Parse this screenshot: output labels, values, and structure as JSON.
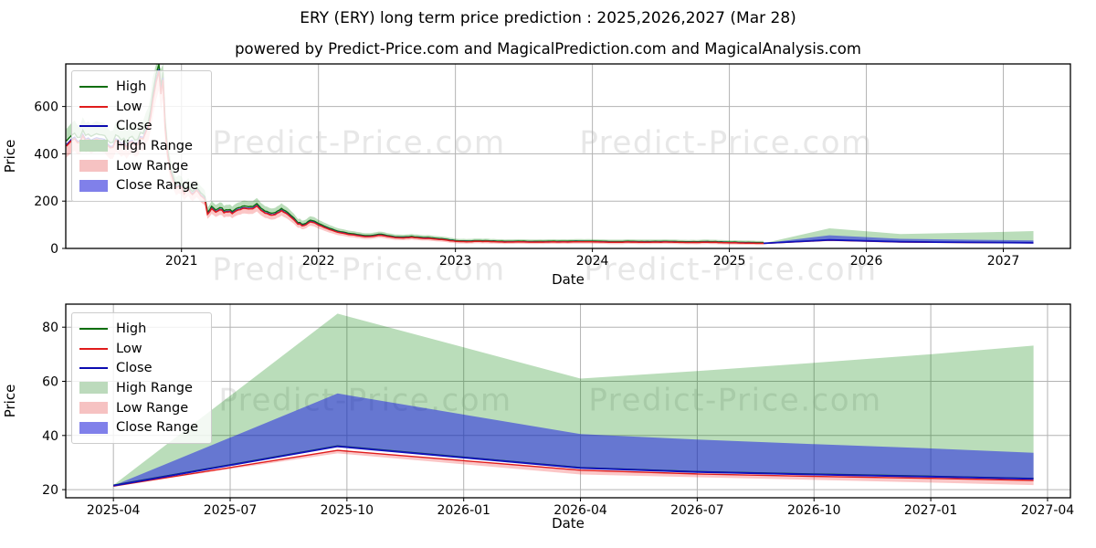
{
  "page": {
    "title": "ERY (ERY) long term price prediction : 2025,2026,2027 (Mar 28)",
    "subtitle": "powered by Predict-Price.com and MagicalPrediction.com and MagicalAnalysis.com"
  },
  "watermark": {
    "text": "Predict-Price.com",
    "color": "#e7e7e7"
  },
  "colors": {
    "high_line": "#0e6e0e",
    "low_line": "#df1d1d",
    "close_line": "#1111bb",
    "high_range_fill": "rgba(0,130,0,0.27)",
    "low_range_fill": "rgba(240,35,35,0.26)",
    "close_range_fill": "rgba(25,25,230,0.52)",
    "grid": "#b3b3b3",
    "spine": "#000000",
    "legend_high_swatch": "#0e6e0e",
    "legend_low_swatch": "#e01c1c",
    "legend_close_swatch": "#0b0bb0",
    "legend_high_range_swatch": "#bcdabc",
    "legend_low_range_swatch": "#f6c2c2",
    "legend_close_range_swatch": "#8080ea"
  },
  "legend": {
    "items": [
      {
        "label": "High",
        "swatch": "line",
        "color_key": "legend_high_swatch"
      },
      {
        "label": "Low",
        "swatch": "line",
        "color_key": "legend_low_swatch"
      },
      {
        "label": "Close",
        "swatch": "line",
        "color_key": "legend_close_swatch"
      },
      {
        "label": "High Range",
        "swatch": "fill",
        "color_key": "legend_high_range_swatch"
      },
      {
        "label": "Low Range",
        "swatch": "fill",
        "color_key": "legend_low_range_swatch"
      },
      {
        "label": "Close Range",
        "swatch": "fill",
        "color_key": "legend_close_range_swatch"
      }
    ]
  },
  "chart_data": [
    {
      "id": "history-and-forecast",
      "type": "line",
      "xlabel": "Date",
      "ylabel": "Price",
      "grid": true,
      "legend_position": "upper left",
      "xlim": [
        2020.155,
        2027.49
      ],
      "ylim": [
        0,
        780
      ],
      "x_ticks": [
        {
          "t": 2021,
          "label": "2021"
        },
        {
          "t": 2022,
          "label": "2022"
        },
        {
          "t": 2023,
          "label": "2023"
        },
        {
          "t": 2024,
          "label": "2024"
        },
        {
          "t": 2025,
          "label": "2025"
        },
        {
          "t": 2026,
          "label": "2026"
        },
        {
          "t": 2027,
          "label": "2027"
        }
      ],
      "y_ticks": [
        0,
        200,
        400,
        600
      ],
      "series_note": "Historical daily High/Low/Close 2020-03 to 2025-03 (values estimated from pixels; Low anchors below, High/Close tightly track Low), then forecast bands identical to detail chart",
      "historical_low_anchors": [
        [
          2020.16,
          430
        ],
        [
          2020.2,
          465
        ],
        [
          2020.24,
          440
        ],
        [
          2020.28,
          480
        ],
        [
          2020.32,
          455
        ],
        [
          2020.36,
          470
        ],
        [
          2020.4,
          442
        ],
        [
          2020.44,
          462
        ],
        [
          2020.48,
          432
        ],
        [
          2020.52,
          452
        ],
        [
          2020.56,
          428
        ],
        [
          2020.6,
          442
        ],
        [
          2020.64,
          456
        ],
        [
          2020.68,
          436
        ],
        [
          2020.72,
          462
        ],
        [
          2020.76,
          520
        ],
        [
          2020.79,
          610
        ],
        [
          2020.815,
          690
        ],
        [
          2020.835,
          738
        ],
        [
          2020.85,
          640
        ],
        [
          2020.865,
          692
        ],
        [
          2020.88,
          520
        ],
        [
          2020.9,
          400
        ],
        [
          2020.92,
          330
        ],
        [
          2020.94,
          280
        ],
        [
          2020.96,
          255
        ],
        [
          2020.98,
          262
        ],
        [
          2021.0,
          258
        ],
        [
          2021.02,
          236
        ],
        [
          2021.05,
          250
        ],
        [
          2021.08,
          228
        ],
        [
          2021.11,
          245
        ],
        [
          2021.14,
          226
        ],
        [
          2021.17,
          208
        ],
        [
          2021.19,
          146
        ],
        [
          2021.22,
          168
        ],
        [
          2021.25,
          156
        ],
        [
          2021.28,
          164
        ],
        [
          2021.31,
          152
        ],
        [
          2021.34,
          158
        ],
        [
          2021.37,
          150
        ],
        [
          2021.4,
          157
        ],
        [
          2021.43,
          165
        ],
        [
          2021.46,
          172
        ],
        [
          2021.49,
          167
        ],
        [
          2021.52,
          170
        ],
        [
          2021.55,
          176
        ],
        [
          2021.58,
          161
        ],
        [
          2021.61,
          149
        ],
        [
          2021.64,
          141
        ],
        [
          2021.67,
          139
        ],
        [
          2021.7,
          151
        ],
        [
          2021.73,
          157
        ],
        [
          2021.76,
          148
        ],
        [
          2021.79,
          136
        ],
        [
          2021.82,
          119
        ],
        [
          2021.85,
          104
        ],
        [
          2021.88,
          97
        ],
        [
          2021.91,
          99
        ],
        [
          2021.94,
          111
        ],
        [
          2021.97,
          107
        ],
        [
          2022.0,
          101
        ],
        [
          2022.04,
          90
        ],
        [
          2022.08,
          79
        ],
        [
          2022.12,
          72
        ],
        [
          2022.16,
          66
        ],
        [
          2022.2,
          62
        ],
        [
          2022.24,
          58
        ],
        [
          2022.28,
          55
        ],
        [
          2022.32,
          51
        ],
        [
          2022.36,
          49
        ],
        [
          2022.4,
          51
        ],
        [
          2022.44,
          56
        ],
        [
          2022.48,
          53
        ],
        [
          2022.52,
          49
        ],
        [
          2022.56,
          46
        ],
        [
          2022.6,
          44
        ],
        [
          2022.64,
          45
        ],
        [
          2022.68,
          47
        ],
        [
          2022.72,
          45
        ],
        [
          2022.76,
          43
        ],
        [
          2022.8,
          42
        ],
        [
          2022.84,
          40
        ],
        [
          2022.88,
          38
        ],
        [
          2022.92,
          36
        ],
        [
          2022.96,
          33
        ],
        [
          2023.0,
          30
        ],
        [
          2023.08,
          28
        ],
        [
          2023.16,
          30
        ],
        [
          2023.24,
          29
        ],
        [
          2023.32,
          27.5
        ],
        [
          2023.4,
          27
        ],
        [
          2023.48,
          27.5
        ],
        [
          2023.56,
          26.5
        ],
        [
          2023.64,
          27
        ],
        [
          2023.72,
          27.5
        ],
        [
          2023.8,
          27
        ],
        [
          2023.88,
          28
        ],
        [
          2023.96,
          28
        ],
        [
          2024.04,
          27.5
        ],
        [
          2024.12,
          26.5
        ],
        [
          2024.2,
          26
        ],
        [
          2024.28,
          27
        ],
        [
          2024.36,
          26
        ],
        [
          2024.44,
          26.5
        ],
        [
          2024.52,
          27
        ],
        [
          2024.6,
          26
        ],
        [
          2024.68,
          25
        ],
        [
          2024.76,
          25.5
        ],
        [
          2024.84,
          26
        ],
        [
          2024.92,
          25
        ],
        [
          2025.0,
          24
        ],
        [
          2025.08,
          23.2
        ],
        [
          2025.16,
          22.3
        ],
        [
          2025.25,
          21.5
        ]
      ],
      "historical_derivation": {
        "high": "low*1.045+2",
        "close": "low*1.012+0.8",
        "high_range_top": "high*1.10+5",
        "low_range_bottom": "low*0.90-5",
        "jitter": "pseudo-random wiggle, ~4.5% above 300, ~3% 100-300, ~2% below 100"
      }
    },
    {
      "id": "forecast-detail",
      "type": "area",
      "xlabel": "Date",
      "ylabel": "Price",
      "grid": true,
      "legend_position": "upper left",
      "xlim": [
        2025.148,
        2027.299
      ],
      "ylim": [
        17,
        88.5
      ],
      "x_ticks": [
        {
          "t": 2025.25,
          "label": "2025-04"
        },
        {
          "t": 2025.5,
          "label": "2025-07"
        },
        {
          "t": 2025.75,
          "label": "2025-10"
        },
        {
          "t": 2026.0,
          "label": "2026-01"
        },
        {
          "t": 2026.25,
          "label": "2026-04"
        },
        {
          "t": 2026.5,
          "label": "2026-07"
        },
        {
          "t": 2026.75,
          "label": "2026-10"
        },
        {
          "t": 2027.0,
          "label": "2027-01"
        },
        {
          "t": 2027.25,
          "label": "2027-04"
        }
      ],
      "y_ticks": [
        20,
        40,
        60,
        80
      ],
      "forecast": {
        "t": [
          2025.25,
          2025.73,
          2026.25,
          2026.5,
          2026.75,
          2027.0,
          2027.22
        ],
        "high": [
          21.7,
          36.2,
          28.2,
          26.7,
          25.8,
          25.0,
          24.2
        ],
        "low": [
          21.3,
          34.5,
          27.2,
          25.8,
          24.9,
          24.2,
          23.4
        ],
        "close": [
          21.5,
          36.0,
          28.0,
          26.5,
          25.6,
          24.8,
          24.0
        ],
        "high_upper": [
          21.7,
          85.0,
          61.0,
          63.8,
          66.8,
          70.0,
          73.2
        ],
        "close_upper": [
          21.5,
          55.5,
          40.5,
          38.5,
          36.8,
          35.2,
          33.6
        ],
        "low_lower": [
          21.3,
          33.4,
          25.6,
          24.6,
          23.6,
          22.6,
          21.7
        ]
      }
    }
  ]
}
